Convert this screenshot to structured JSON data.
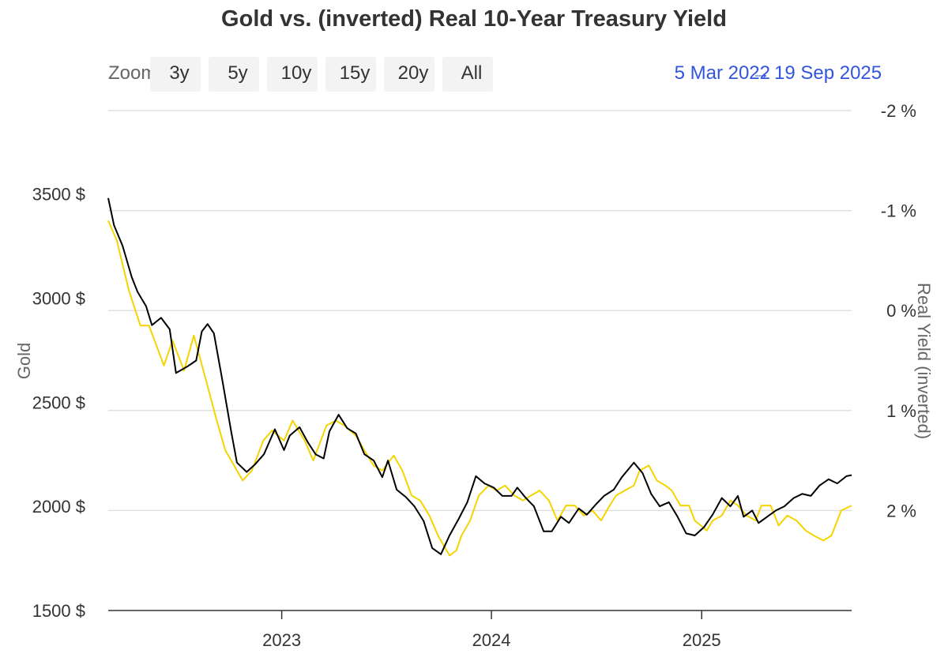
{
  "toolbar": {
    "zoom_label": "Zoom",
    "buttons": [
      "3y",
      "5y",
      "10y",
      "15y",
      "20y",
      "All"
    ],
    "range_from": "5 Mar 2022",
    "range_separator": "→",
    "range_to": "19 Sep 2025"
  },
  "colors": {
    "gold_line": "#000000",
    "yield_line": "#f5d400",
    "grid": "#e0e0e0",
    "range_text": "#3355dd"
  },
  "chart_data": {
    "type": "line",
    "title": "Gold vs. (inverted) Real 10-Year Treasury Yield",
    "left_axis": {
      "label": "Gold",
      "ylim": [
        1500,
        3900
      ],
      "ticks": [
        1500,
        2000,
        2500,
        3000,
        3500
      ],
      "tick_labels": [
        "1500 $",
        "2000 $",
        "2500 $",
        "3000 $",
        "3500 $"
      ]
    },
    "right_axis": {
      "label": "Real Yield (inverted)",
      "inverted": true,
      "ylim": [
        3.0,
        -2.0
      ],
      "ticks": [
        2,
        1,
        0,
        -1,
        -2
      ],
      "tick_labels": [
        "2 %",
        "1 %",
        "0 %",
        "-1 %",
        "-2 %"
      ]
    },
    "x_axis": {
      "range": [
        "2022-03-05",
        "2025-09-19"
      ],
      "ticks": [
        "2023-01-01",
        "2024-01-01",
        "2025-01-01"
      ],
      "tick_labels": [
        "2023",
        "2024",
        "2025"
      ]
    },
    "grid": true,
    "series": [
      {
        "name": "Real Yield (inverted)",
        "axis": "right",
        "color": "#f5d400",
        "points": [
          [
            "2022-03-05",
            -0.9
          ],
          [
            "2022-03-20",
            -0.7
          ],
          [
            "2022-04-10",
            -0.2
          ],
          [
            "2022-04-30",
            0.15
          ],
          [
            "2022-05-15",
            0.15
          ],
          [
            "2022-06-10",
            0.55
          ],
          [
            "2022-06-25",
            0.3
          ],
          [
            "2022-07-15",
            0.6
          ],
          [
            "2022-08-01",
            0.25
          ],
          [
            "2022-08-20",
            0.65
          ],
          [
            "2022-09-10",
            1.1
          ],
          [
            "2022-09-25",
            1.4
          ],
          [
            "2022-10-10",
            1.55
          ],
          [
            "2022-10-25",
            1.7
          ],
          [
            "2022-11-10",
            1.6
          ],
          [
            "2022-11-30",
            1.3
          ],
          [
            "2022-12-15",
            1.2
          ],
          [
            "2023-01-05",
            1.3
          ],
          [
            "2023-01-20",
            1.1
          ],
          [
            "2023-02-10",
            1.3
          ],
          [
            "2023-02-25",
            1.5
          ],
          [
            "2023-03-10",
            1.3
          ],
          [
            "2023-03-20",
            1.15
          ],
          [
            "2023-04-05",
            1.1
          ],
          [
            "2023-04-20",
            1.15
          ],
          [
            "2023-05-10",
            1.25
          ],
          [
            "2023-05-25",
            1.4
          ],
          [
            "2023-06-10",
            1.55
          ],
          [
            "2023-06-25",
            1.6
          ],
          [
            "2023-07-15",
            1.45
          ],
          [
            "2023-07-30",
            1.6
          ],
          [
            "2023-08-15",
            1.85
          ],
          [
            "2023-08-30",
            1.9
          ],
          [
            "2023-09-15",
            2.05
          ],
          [
            "2023-09-30",
            2.25
          ],
          [
            "2023-10-10",
            2.35
          ],
          [
            "2023-10-20",
            2.45
          ],
          [
            "2023-11-01",
            2.4
          ],
          [
            "2023-11-10",
            2.25
          ],
          [
            "2023-11-25",
            2.1
          ],
          [
            "2023-12-10",
            1.85
          ],
          [
            "2023-12-27",
            1.75
          ],
          [
            "2024-01-10",
            1.8
          ],
          [
            "2024-01-25",
            1.75
          ],
          [
            "2024-02-10",
            1.85
          ],
          [
            "2024-02-25",
            1.9
          ],
          [
            "2024-03-10",
            1.85
          ],
          [
            "2024-03-25",
            1.8
          ],
          [
            "2024-04-10",
            1.9
          ],
          [
            "2024-04-25",
            2.1
          ],
          [
            "2024-05-10",
            1.95
          ],
          [
            "2024-05-25",
            1.95
          ],
          [
            "2024-06-10",
            2.05
          ],
          [
            "2024-06-25",
            2.0
          ],
          [
            "2024-07-10",
            2.1
          ],
          [
            "2024-07-25",
            1.95
          ],
          [
            "2024-08-05",
            1.85
          ],
          [
            "2024-08-20",
            1.8
          ],
          [
            "2024-09-05",
            1.75
          ],
          [
            "2024-09-15",
            1.6
          ],
          [
            "2024-10-01",
            1.55
          ],
          [
            "2024-10-15",
            1.7
          ],
          [
            "2024-10-30",
            1.75
          ],
          [
            "2024-11-10",
            1.8
          ],
          [
            "2024-11-25",
            1.95
          ],
          [
            "2024-12-10",
            1.95
          ],
          [
            "2024-12-20",
            2.1
          ],
          [
            "2025-01-10",
            2.2
          ],
          [
            "2025-01-20",
            2.1
          ],
          [
            "2025-02-05",
            2.05
          ],
          [
            "2025-02-20",
            1.9
          ],
          [
            "2025-03-05",
            1.95
          ],
          [
            "2025-03-20",
            2.05
          ],
          [
            "2025-04-05",
            2.1
          ],
          [
            "2025-04-15",
            1.95
          ],
          [
            "2025-05-01",
            1.95
          ],
          [
            "2025-05-15",
            2.15
          ],
          [
            "2025-05-30",
            2.05
          ],
          [
            "2025-06-15",
            2.1
          ],
          [
            "2025-07-01",
            2.2
          ],
          [
            "2025-07-15",
            2.25
          ],
          [
            "2025-08-01",
            2.3
          ],
          [
            "2025-08-15",
            2.25
          ],
          [
            "2025-09-01",
            2.0
          ],
          [
            "2025-09-19",
            1.95
          ]
        ]
      },
      {
        "name": "Gold",
        "axis": "left",
        "color": "#000000",
        "points": [
          [
            "2022-03-05",
            3480
          ],
          [
            "2022-03-15",
            3350
          ],
          [
            "2022-03-30",
            3250
          ],
          [
            "2022-04-15",
            3100
          ],
          [
            "2022-04-25",
            3030
          ],
          [
            "2022-05-10",
            2960
          ],
          [
            "2022-05-20",
            2870
          ],
          [
            "2022-06-05",
            2905
          ],
          [
            "2022-06-20",
            2850
          ],
          [
            "2022-07-01",
            2640
          ],
          [
            "2022-07-20",
            2670
          ],
          [
            "2022-08-05",
            2700
          ],
          [
            "2022-08-15",
            2840
          ],
          [
            "2022-08-25",
            2875
          ],
          [
            "2022-09-05",
            2830
          ],
          [
            "2022-09-20",
            2600
          ],
          [
            "2022-10-05",
            2360
          ],
          [
            "2022-10-15",
            2210
          ],
          [
            "2022-11-01",
            2165
          ],
          [
            "2022-11-15",
            2200
          ],
          [
            "2022-12-01",
            2250
          ],
          [
            "2022-12-20",
            2370
          ],
          [
            "2023-01-05",
            2270
          ],
          [
            "2023-01-15",
            2340
          ],
          [
            "2023-02-01",
            2380
          ],
          [
            "2023-02-15",
            2310
          ],
          [
            "2023-03-01",
            2250
          ],
          [
            "2023-03-15",
            2230
          ],
          [
            "2023-03-25",
            2360
          ],
          [
            "2023-04-10",
            2440
          ],
          [
            "2023-04-25",
            2375
          ],
          [
            "2023-05-10",
            2350
          ],
          [
            "2023-05-25",
            2250
          ],
          [
            "2023-06-10",
            2220
          ],
          [
            "2023-06-25",
            2140
          ],
          [
            "2023-07-05",
            2220
          ],
          [
            "2023-07-20",
            2080
          ],
          [
            "2023-08-05",
            2045
          ],
          [
            "2023-08-20",
            2000
          ],
          [
            "2023-09-05",
            1930
          ],
          [
            "2023-09-20",
            1800
          ],
          [
            "2023-10-05",
            1770
          ],
          [
            "2023-10-20",
            1860
          ],
          [
            "2023-11-05",
            1940
          ],
          [
            "2023-11-20",
            2020
          ],
          [
            "2023-12-05",
            2145
          ],
          [
            "2023-12-20",
            2110
          ],
          [
            "2024-01-05",
            2090
          ],
          [
            "2024-01-20",
            2050
          ],
          [
            "2024-02-05",
            2050
          ],
          [
            "2024-02-15",
            2090
          ],
          [
            "2024-03-01",
            2040
          ],
          [
            "2024-03-15",
            2000
          ],
          [
            "2024-04-01",
            1880
          ],
          [
            "2024-04-15",
            1880
          ],
          [
            "2024-05-01",
            1950
          ],
          [
            "2024-05-15",
            1920
          ],
          [
            "2024-06-01",
            1990
          ],
          [
            "2024-06-15",
            1960
          ],
          [
            "2024-07-01",
            2010
          ],
          [
            "2024-07-15",
            2050
          ],
          [
            "2024-08-01",
            2080
          ],
          [
            "2024-08-15",
            2140
          ],
          [
            "2024-09-05",
            2210
          ],
          [
            "2024-09-20",
            2160
          ],
          [
            "2024-10-05",
            2060
          ],
          [
            "2024-10-20",
            2000
          ],
          [
            "2024-11-05",
            2020
          ],
          [
            "2024-11-20",
            1950
          ],
          [
            "2024-12-05",
            1870
          ],
          [
            "2024-12-20",
            1860
          ],
          [
            "2025-01-05",
            1900
          ],
          [
            "2025-01-20",
            1960
          ],
          [
            "2025-02-05",
            2040
          ],
          [
            "2025-02-20",
            2000
          ],
          [
            "2025-03-05",
            2050
          ],
          [
            "2025-03-15",
            1950
          ],
          [
            "2025-03-30",
            1980
          ],
          [
            "2025-04-10",
            1920
          ],
          [
            "2025-04-25",
            1950
          ],
          [
            "2025-05-10",
            1980
          ],
          [
            "2025-05-25",
            2000
          ],
          [
            "2025-06-10",
            2040
          ],
          [
            "2025-06-25",
            2060
          ],
          [
            "2025-07-10",
            2050
          ],
          [
            "2025-07-25",
            2100
          ],
          [
            "2025-08-10",
            2130
          ],
          [
            "2025-08-25",
            2110
          ],
          [
            "2025-09-10",
            2145
          ],
          [
            "2025-09-19",
            2150
          ]
        ]
      }
    ]
  }
}
